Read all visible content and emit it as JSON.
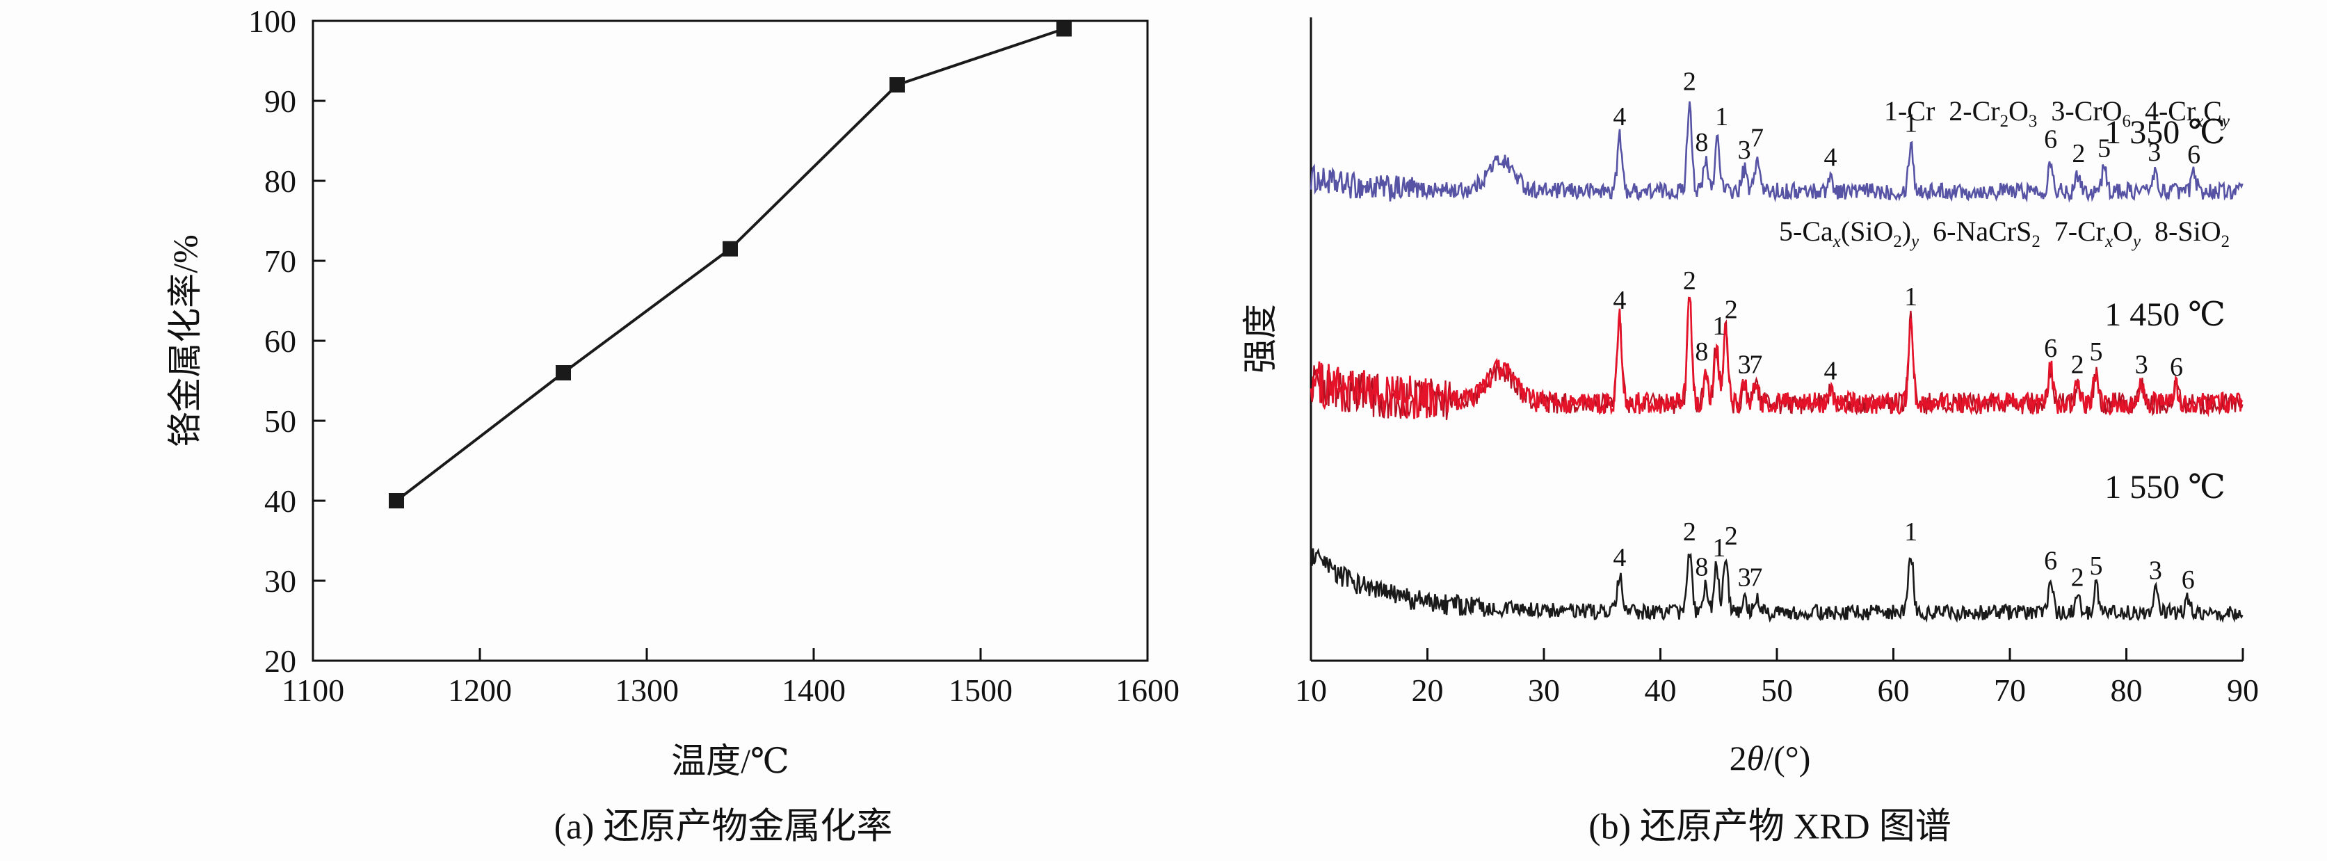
{
  "figure": {
    "panel_a": {
      "caption": "(a) 还原产物金属化率",
      "xlabel": "温度/℃",
      "ylabel": "铬金属化率/%"
    },
    "panel_b": {
      "caption": "(b) 还原产物 XRD 图谱",
      "ylabel": "强度",
      "xlabel_runs": [
        {
          "t": "2"
        },
        {
          "t": "θ",
          "i": 1
        },
        {
          "t": "/(°)"
        }
      ],
      "legend_runs": [
        [
          {
            "t": "1-Cr  2-Cr"
          },
          {
            "t": "2",
            "s": 1
          },
          {
            "t": "O"
          },
          {
            "t": "3",
            "s": 1
          },
          {
            "t": "  3-CrO"
          },
          {
            "t": "6",
            "s": 1
          },
          {
            "t": "  4-Cr"
          },
          {
            "t": "x",
            "s": 1,
            "i": 1
          },
          {
            "t": "C"
          },
          {
            "t": "y",
            "s": 1,
            "i": 1
          }
        ],
        [
          {
            "t": "5-Ca"
          },
          {
            "t": "x",
            "s": 1,
            "i": 1
          },
          {
            "t": "(SiO"
          },
          {
            "t": "2",
            "s": 1
          },
          {
            "t": ")"
          },
          {
            "t": "y",
            "s": 1,
            "i": 1
          },
          {
            "t": "  6-NaCrS"
          },
          {
            "t": "2",
            "s": 1
          },
          {
            "t": "  7-Cr"
          },
          {
            "t": "x",
            "s": 1,
            "i": 1
          },
          {
            "t": "O"
          },
          {
            "t": "y",
            "s": 1,
            "i": 1
          },
          {
            "t": "  8-SiO"
          },
          {
            "t": "2",
            "s": 1
          }
        ]
      ]
    }
  },
  "chart_data": [
    {
      "type": "line",
      "title": "(a) 还原产物金属化率",
      "xlabel": "温度/℃",
      "ylabel": "铬金属化率/%",
      "x": [
        1150,
        1250,
        1350,
        1450,
        1550
      ],
      "y": [
        40,
        56,
        71.5,
        92,
        99
      ],
      "xlim": [
        1100,
        1600
      ],
      "ylim": [
        20,
        100
      ],
      "xticks": [
        1100,
        1200,
        1300,
        1400,
        1500,
        1600
      ],
      "yticks": [
        20,
        30,
        40,
        50,
        60,
        70,
        80,
        90,
        100
      ],
      "marker": "square",
      "color": "#1a1a1a",
      "grid": false
    },
    {
      "type": "line",
      "subtype": "xrd-stacked",
      "title": "(b) 还原产物 XRD 图谱",
      "xlabel": "2θ/(°)",
      "ylabel": "强度",
      "xlim": [
        10,
        90
      ],
      "xticks": [
        10,
        20,
        30,
        40,
        50,
        60,
        70,
        80,
        90
      ],
      "grid": false,
      "legend_position": "top-right",
      "legend": [
        "1-Cr",
        "2-Cr2O3",
        "3-CrO6",
        "4-CrxCy",
        "5-Cax(SiO2)y",
        "6-NaCrS2",
        "7-CrxOy",
        "8-SiO2"
      ],
      "series": [
        {
          "name": "1 350 ℃",
          "color": "#5753a4",
          "baseline": 0.27,
          "noise": 0.013,
          "left": {
            "until": 19,
            "mult": 1.6
          },
          "decay": {
            "h": 0.02,
            "tau": 4
          },
          "peaks": [
            {
              "x": 26.3,
              "h": 0.048,
              "w": 1.1
            },
            {
              "x": 36.5,
              "h": 0.085,
              "label": "4"
            },
            {
              "x": 42.5,
              "h": 0.14,
              "label": "2"
            },
            {
              "x": 43.9,
              "h": 0.045,
              "label": "8",
              "lx": -6
            },
            {
              "x": 44.9,
              "h": 0.085,
              "label": "1",
              "lx": 6
            },
            {
              "x": 47.2,
              "h": 0.033,
              "label": "3"
            },
            {
              "x": 48.3,
              "h": 0.052,
              "label": "7"
            },
            {
              "x": 54.6,
              "h": 0.022,
              "label": "4"
            },
            {
              "x": 61.5,
              "h": 0.075,
              "label": "1"
            },
            {
              "x": 73.5,
              "h": 0.05,
              "label": "6"
            },
            {
              "x": 75.9,
              "h": 0.028,
              "label": "2"
            },
            {
              "x": 78.1,
              "h": 0.036,
              "label": "5"
            },
            {
              "x": 82.4,
              "h": 0.03,
              "label": "3"
            },
            {
              "x": 85.8,
              "h": 0.026,
              "label": "6"
            }
          ]
        },
        {
          "name": "1 450 ℃",
          "color": "#e5132a",
          "baseline": 0.6,
          "noise": 0.017,
          "second": true,
          "left": {
            "until": 22,
            "mult": 2.1
          },
          "decay": {
            "h": 0.035,
            "tau": 6
          },
          "peaks": [
            {
              "x": 26.3,
              "h": 0.05,
              "w": 1.2
            },
            {
              "x": 36.5,
              "h": 0.13,
              "label": "4"
            },
            {
              "x": 42.5,
              "h": 0.16,
              "label": "2"
            },
            {
              "x": 43.9,
              "h": 0.05,
              "label": "8",
              "lx": -6
            },
            {
              "x": 44.8,
              "h": 0.09,
              "label": "1",
              "lx": 4
            },
            {
              "x": 45.6,
              "h": 0.115,
              "label": "2",
              "lx": 8
            },
            {
              "x": 47.2,
              "h": 0.03,
              "label": "3"
            },
            {
              "x": 48.2,
              "h": 0.03,
              "label": "7"
            },
            {
              "x": 54.6,
              "h": 0.02,
              "label": "4"
            },
            {
              "x": 61.5,
              "h": 0.135,
              "label": "1"
            },
            {
              "x": 73.5,
              "h": 0.055,
              "label": "6"
            },
            {
              "x": 75.8,
              "h": 0.03,
              "label": "2"
            },
            {
              "x": 77.4,
              "h": 0.05,
              "label": "5"
            },
            {
              "x": 81.3,
              "h": 0.03,
              "label": "3"
            },
            {
              "x": 84.3,
              "h": 0.026,
              "label": "6"
            }
          ]
        },
        {
          "name": "1 550 ℃",
          "color": "#1a1a1a",
          "baseline": 0.925,
          "noise": 0.012,
          "left": {
            "until": 25,
            "mult": 1.4
          },
          "decay": {
            "h": 0.088,
            "tau": 6
          },
          "peaks": [
            {
              "x": 36.5,
              "h": 0.055,
              "label": "4"
            },
            {
              "x": 42.5,
              "h": 0.095,
              "label": "2"
            },
            {
              "x": 43.9,
              "h": 0.04,
              "label": "8",
              "lx": -6
            },
            {
              "x": 44.8,
              "h": 0.07,
              "label": "1",
              "lx": 4
            },
            {
              "x": 45.6,
              "h": 0.088,
              "label": "2",
              "lx": 8
            },
            {
              "x": 47.2,
              "h": 0.024,
              "label": "3"
            },
            {
              "x": 48.2,
              "h": 0.024,
              "label": "7"
            },
            {
              "x": 61.5,
              "h": 0.095,
              "label": "1"
            },
            {
              "x": 73.5,
              "h": 0.05,
              "label": "6"
            },
            {
              "x": 75.8,
              "h": 0.024,
              "label": "2"
            },
            {
              "x": 77.4,
              "h": 0.042,
              "label": "5"
            },
            {
              "x": 82.5,
              "h": 0.035,
              "label": "3"
            },
            {
              "x": 85.3,
              "h": 0.02,
              "label": "6"
            }
          ]
        }
      ]
    }
  ]
}
